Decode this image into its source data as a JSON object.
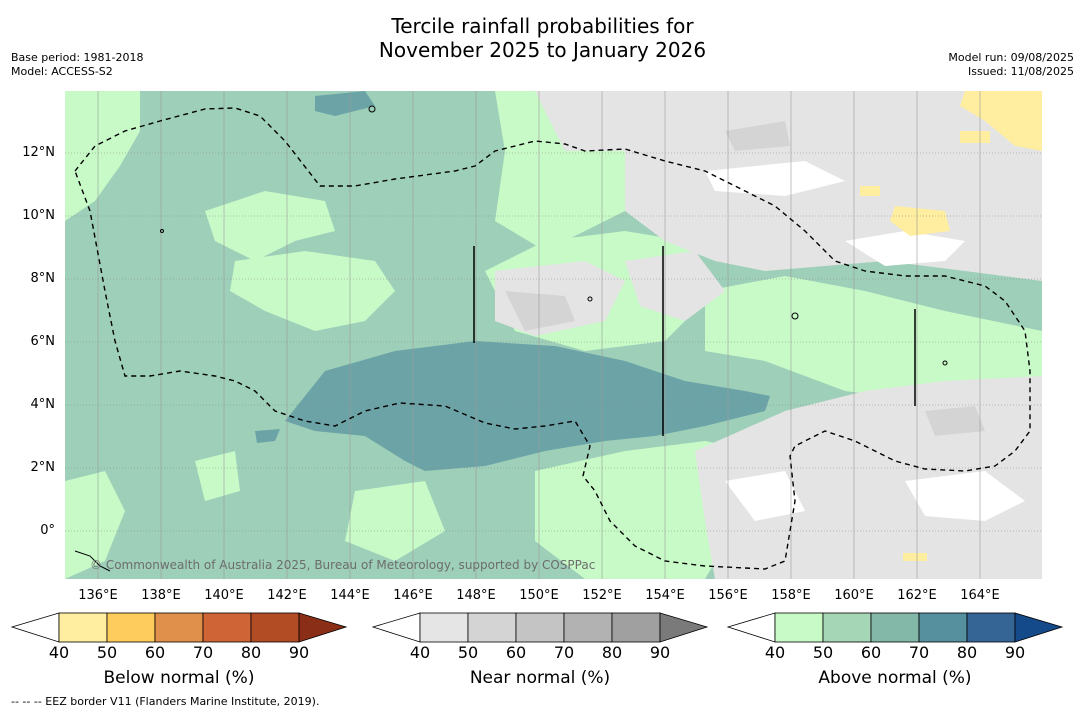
{
  "title_line1": "Tercile rainfall probabilities for",
  "title_line2": "November 2025 to January 2026",
  "base_period": "Base period: 1981-2018",
  "model": "Model: ACCESS-S2",
  "model_run": "Model run: 09/08/2025",
  "issued": "Issued: 11/08/2025",
  "copyright": "© Commonwealth of Australia 2025, Bureau of Meteorology, supported by COSPPac",
  "footer": "--  --  -- EEZ border V11 (Flanders Marine Institute, 2019).",
  "lat_labels": [
    "12°N",
    "10°N",
    "8°N",
    "6°N",
    "4°N",
    "2°N",
    "0°"
  ],
  "lon_labels": [
    "136°E",
    "138°E",
    "140°E",
    "142°E",
    "144°E",
    "146°E",
    "148°E",
    "150°E",
    "152°E",
    "154°E",
    "156°E",
    "158°E",
    "160°E",
    "162°E",
    "164°E"
  ],
  "colorbars": [
    {
      "title": "Below normal (%)",
      "ticks": [
        "40",
        "50",
        "60",
        "70",
        "80",
        "90"
      ],
      "colors": [
        "#ffffff",
        "#ffeda0",
        "#fecc5c",
        "#e0904a",
        "#cf6436",
        "#b24c25",
        "#8b2e18"
      ]
    },
    {
      "title": "Near normal (%)",
      "ticks": [
        "40",
        "50",
        "60",
        "70",
        "80",
        "90"
      ],
      "colors": [
        "#ffffff",
        "#e5e5e5",
        "#d4d4d4",
        "#c4c4c4",
        "#b2b2b2",
        "#a0a0a0",
        "#7a7a7a"
      ]
    },
    {
      "title": "Above normal (%)",
      "ticks": [
        "40",
        "50",
        "60",
        "70",
        "80",
        "90"
      ],
      "colors": [
        "#ffffff",
        "#c8fac8",
        "#a5d6b5",
        "#83b8a8",
        "#568f9e",
        "#356595",
        "#154a8a"
      ]
    }
  ],
  "map_colors": {
    "green_light": "#c8fac8",
    "green_mid": "#9dcfb9",
    "green_dark": "#6ca3a6",
    "grey_light": "#e4e4e4",
    "grey_mid": "#d4d4d4",
    "yellow": "#ffeda0",
    "white": "#ffffff"
  }
}
